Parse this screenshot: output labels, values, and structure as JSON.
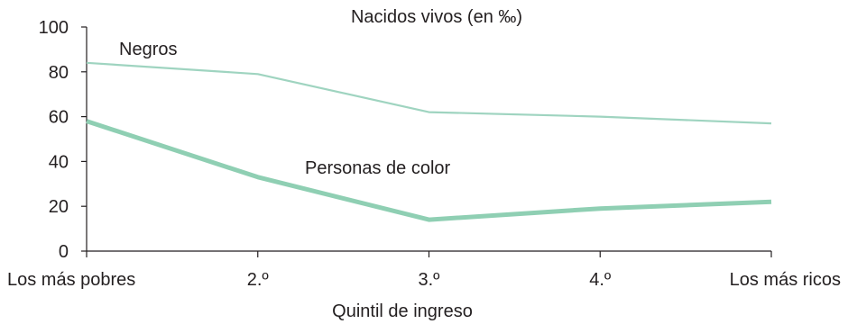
{
  "chart_data": {
    "type": "line",
    "title": "Nacidos vivos (en ‰)",
    "xlabel": "Quintil de ingreso",
    "ylabel": "",
    "categories": [
      "Los más pobres",
      "2.º",
      "3.º",
      "4.º",
      "Los más ricos"
    ],
    "ylim": [
      0,
      100
    ],
    "yticks": [
      0,
      20,
      40,
      60,
      80,
      100
    ],
    "grid": false,
    "series": [
      {
        "name": "Negros",
        "values": [
          84,
          79,
          62,
          60,
          57
        ],
        "color": "#9fd4c0",
        "weight": "thin"
      },
      {
        "name": "Personas de color",
        "values": [
          58,
          33,
          14,
          19,
          22
        ],
        "color": "#8fcfb3",
        "weight": "thick"
      }
    ]
  }
}
